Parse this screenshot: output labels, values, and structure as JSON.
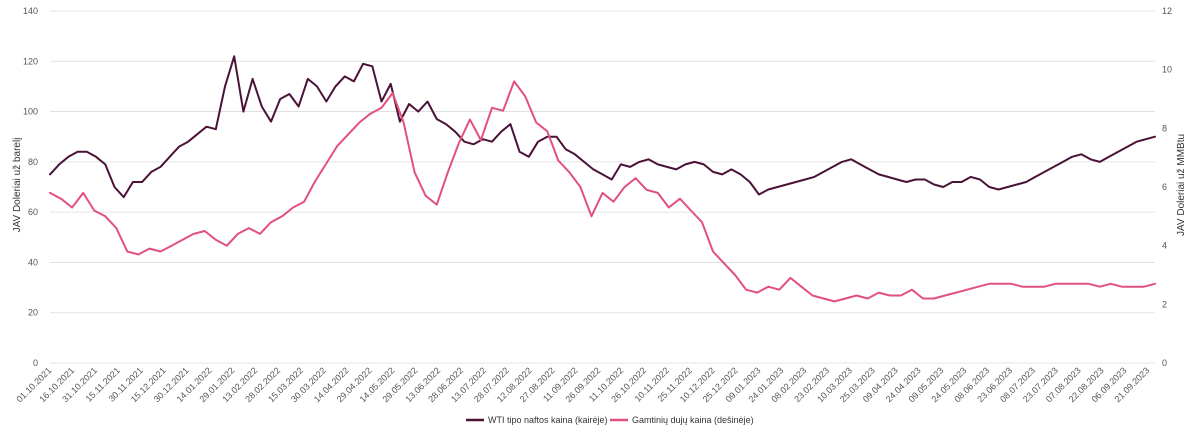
{
  "chart_data": {
    "type": "line",
    "ylabel_left": "JAV Doleriai už barelį",
    "ylabel_right": "JAV Doleriai už MMBtu",
    "ylim_left": [
      0,
      140
    ],
    "yticks_left": [
      "0",
      "20",
      "40",
      "60",
      "80",
      "100",
      "120",
      "140"
    ],
    "ylim_right": [
      0,
      12
    ],
    "yticks_right": [
      "0",
      "2",
      "4",
      "6",
      "8",
      "10",
      "12"
    ],
    "grid": true,
    "legend_position": "bottom-center",
    "colors": {
      "wti": "#4a1238",
      "gas": "#e2507e"
    },
    "x_tick_labels": [
      "01.10.2021",
      "16.10.2021",
      "31.10.2021",
      "15.11.2021",
      "30.11.2021",
      "15.12.2021",
      "30.12.2021",
      "14.01.2022",
      "29.01.2022",
      "13.02.2022",
      "28.02.2022",
      "15.03.2022",
      "30.03.2022",
      "14.04.2022",
      "29.04.2022",
      "14.05.2022",
      "29.05.2022",
      "13.06.2022",
      "28.06.2022",
      "13.07.2022",
      "28.07.2022",
      "12.08.2022",
      "27.08.2022",
      "11.09.2022",
      "26.09.2022",
      "11.10.2022",
      "26.10.2022",
      "10.11.2022",
      "25.11.2022",
      "10.12.2022",
      "25.12.2022",
      "09.01.2023",
      "24.01.2023",
      "08.02.2023",
      "23.02.2023",
      "10.03.2023",
      "25.03.2023",
      "09.04.2023",
      "24.04.2023",
      "09.05.2023",
      "24.05.2023",
      "08.06.2023",
      "23.06.2023",
      "08.07.2023",
      "23.07.2023",
      "07.08.2023",
      "22.08.2023",
      "06.09.2023",
      "21.09.2023"
    ],
    "series": [
      {
        "name": "WTI tipo naftos kaina (kairėje)",
        "axis": "left",
        "values": [
          75,
          79,
          82,
          84,
          84,
          82,
          79,
          70,
          66,
          72,
          72,
          76,
          78,
          82,
          86,
          88,
          91,
          94,
          93,
          110,
          122,
          100,
          113,
          102,
          96,
          105,
          107,
          102,
          113,
          110,
          104,
          110,
          114,
          112,
          119,
          118,
          104,
          111,
          96,
          103,
          100,
          104,
          97,
          95,
          92,
          88,
          87,
          89,
          88,
          92,
          95,
          84,
          82,
          88,
          90,
          90,
          85,
          83,
          80,
          77,
          75,
          73,
          79,
          78,
          80,
          81,
          79,
          78,
          77,
          79,
          80,
          79,
          76,
          75,
          77,
          75,
          72,
          67,
          69,
          70,
          71,
          72,
          73,
          74,
          76,
          78,
          80,
          81,
          79,
          77,
          75,
          74,
          73,
          72,
          73,
          73,
          71,
          70,
          72,
          72,
          74,
          73,
          70,
          69,
          70,
          71,
          72,
          74,
          76,
          78,
          80,
          82,
          83,
          81,
          80,
          82,
          84,
          86,
          88,
          89,
          90
        ]
      },
      {
        "name": "Gamtinių dujų kaina (dešinėje)",
        "axis": "right",
        "values": [
          5.8,
          5.6,
          5.3,
          5.8,
          5.2,
          5.0,
          4.6,
          3.8,
          3.7,
          3.9,
          3.8,
          4.0,
          4.2,
          4.4,
          4.5,
          4.2,
          4.0,
          4.4,
          4.6,
          4.4,
          4.8,
          5.0,
          5.3,
          5.5,
          6.2,
          6.8,
          7.4,
          7.8,
          8.2,
          8.5,
          8.7,
          9.2,
          8.2,
          6.5,
          5.7,
          5.4,
          6.5,
          7.5,
          8.3,
          7.6,
          8.7,
          8.6,
          9.6,
          9.1,
          8.2,
          7.9,
          6.9,
          6.5,
          6.0,
          5.0,
          5.8,
          5.5,
          6.0,
          6.3,
          5.9,
          5.8,
          5.3,
          5.6,
          5.2,
          4.8,
          3.8,
          3.4,
          3.0,
          2.5,
          2.4,
          2.6,
          2.5,
          2.9,
          2.6,
          2.3,
          2.2,
          2.1,
          2.2,
          2.3,
          2.2,
          2.4,
          2.3,
          2.3,
          2.5,
          2.2,
          2.2,
          2.3,
          2.4,
          2.5,
          2.6,
          2.7,
          2.7,
          2.7,
          2.6,
          2.6,
          2.6,
          2.7,
          2.7,
          2.7,
          2.7,
          2.6,
          2.7,
          2.6,
          2.6,
          2.6,
          2.7
        ]
      }
    ]
  }
}
